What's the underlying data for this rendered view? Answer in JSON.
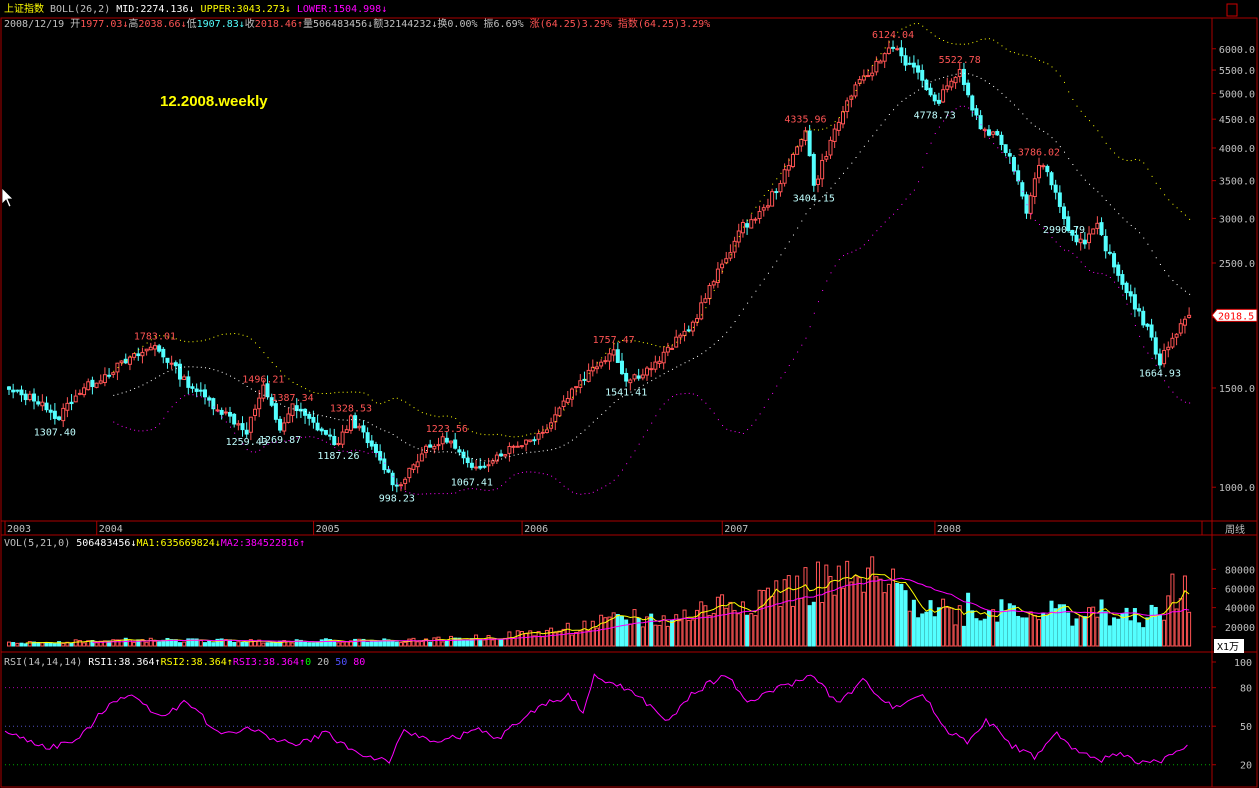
{
  "colors": {
    "bg": "#000000",
    "up": "#ff5454",
    "down": "#54ffff",
    "frame": "#aa0000",
    "axis_text": "#c0c0c0",
    "mid": "#ffffff",
    "upper": "#ffff00",
    "lower": "#ff00ff",
    "ma1": "#ffff00",
    "ma2": "#ff00ff",
    "rsi": "#ff00ff",
    "title_yellow": "#ffff00",
    "peak_label": "#ff5454",
    "trough_label": "#c0ffff"
  },
  "header": {
    "line1": [
      {
        "text": "上证指数",
        "color": "#ffff00"
      },
      {
        "text": " BOLL(26,2) ",
        "color": "#c0c0c0"
      },
      {
        "text": "MID:2274.136",
        "color": "#ffffff"
      },
      {
        "text": "↓ ",
        "color": "#ffffff"
      },
      {
        "text": "UPPER:3043.273",
        "color": "#ffff00"
      },
      {
        "text": "↓ ",
        "color": "#ffff00"
      },
      {
        "text": "LOWER:1504.998",
        "color": "#ff00ff"
      },
      {
        "text": "↓",
        "color": "#ff00ff"
      }
    ],
    "line2": [
      {
        "text": "2008/12/19 ",
        "color": "#c0c0c0"
      },
      {
        "text": "开",
        "color": "#c0c0c0"
      },
      {
        "text": "1977.03",
        "color": "#ff5454"
      },
      {
        "text": "↓",
        "color": "#ff5454"
      },
      {
        "text": "高",
        "color": "#c0c0c0"
      },
      {
        "text": "2038.66",
        "color": "#ff5454"
      },
      {
        "text": "↓",
        "color": "#ff5454"
      },
      {
        "text": "低",
        "color": "#c0c0c0"
      },
      {
        "text": "1907.83",
        "color": "#54ffff"
      },
      {
        "text": "↓",
        "color": "#54ffff"
      },
      {
        "text": "收",
        "color": "#c0c0c0"
      },
      {
        "text": "2018.46",
        "color": "#ff5454"
      },
      {
        "text": "↑",
        "color": "#ff5454"
      },
      {
        "text": "量506483456",
        "color": "#c0c0c0"
      },
      {
        "text": "↓",
        "color": "#c0c0c0"
      },
      {
        "text": "额32144232",
        "color": "#c0c0c0"
      },
      {
        "text": "↓",
        "color": "#c0c0c0"
      },
      {
        "text": "换0.00% 振6.69% ",
        "color": "#c0c0c0"
      },
      {
        "text": "涨(64.25)3.29%",
        "color": "#ff5454"
      },
      {
        "text": " 指数(64.25)3.29%",
        "color": "#ff5454"
      }
    ],
    "vol_line": [
      {
        "text": "VOL(5,21,0) ",
        "color": "#c0c0c0"
      },
      {
        "text": "506483456",
        "color": "#ffffff"
      },
      {
        "text": "↓",
        "color": "#ffffff"
      },
      {
        "text": "MA1:635669824",
        "color": "#ffff00"
      },
      {
        "text": "↓",
        "color": "#ffff00"
      },
      {
        "text": "MA2:384522816",
        "color": "#ff00ff"
      },
      {
        "text": "↑",
        "color": "#ff00ff"
      }
    ],
    "rsi_line": [
      {
        "text": "RSI(14,14,14) ",
        "color": "#c0c0c0"
      },
      {
        "text": "RSI1:38.364",
        "color": "#ffffff"
      },
      {
        "text": "↑",
        "color": "#ffffff"
      },
      {
        "text": "RSI2:38.364",
        "color": "#ffff00"
      },
      {
        "text": "↑",
        "color": "#ffff00"
      },
      {
        "text": "RSI3:38.364",
        "color": "#ff00ff"
      },
      {
        "text": "↑",
        "color": "#ff00ff"
      },
      {
        "text": "0",
        "color": "#00ff00"
      },
      {
        "text": " 20 ",
        "color": "#c0c0c0"
      },
      {
        "text": "50",
        "color": "#5050ff"
      },
      {
        "text": " 80",
        "color": "#ff00ff"
      }
    ]
  },
  "watermark": "12.2008.weekly",
  "price_badge": "2018.5",
  "period_label": "周线",
  "vol_unit": "X1万",
  "chart_data": {
    "type": "candlestick",
    "period": "weekly",
    "x_axis": {
      "labels": [
        "2003",
        "2004",
        "2005",
        "2006",
        "2007",
        "2008"
      ],
      "label_week": [
        0,
        22,
        74,
        124,
        172,
        223
      ]
    },
    "price_axis": {
      "ticks": [
        1000.0,
        1500.0,
        2000.0,
        2500.0,
        3000.0,
        3500.0,
        4000.0,
        4500.0,
        5000.0,
        5500.0,
        6000.0
      ],
      "range": [
        900,
        6270
      ]
    },
    "anchors": [
      [
        0,
        1480
      ],
      [
        8,
        1420
      ],
      [
        11,
        1307.4
      ],
      [
        16,
        1460
      ],
      [
        25,
        1620
      ],
      [
        35,
        1783.01
      ],
      [
        42,
        1550
      ],
      [
        48,
        1420
      ],
      [
        57,
        1259.43
      ],
      [
        61,
        1496.21
      ],
      [
        65,
        1269.87
      ],
      [
        68,
        1387.34
      ],
      [
        79,
        1187.26
      ],
      [
        82,
        1328.53
      ],
      [
        88,
        1140
      ],
      [
        93,
        998.23
      ],
      [
        99,
        1150
      ],
      [
        105,
        1223.56
      ],
      [
        111,
        1067.41
      ],
      [
        118,
        1150
      ],
      [
        128,
        1250
      ],
      [
        136,
        1520
      ],
      [
        145,
        1757.47
      ],
      [
        148,
        1541.41
      ],
      [
        155,
        1650
      ],
      [
        164,
        1950
      ],
      [
        170,
        2400
      ],
      [
        176,
        2900
      ],
      [
        181,
        3100
      ],
      [
        187,
        3700
      ],
      [
        190,
        4200
      ],
      [
        191,
        4335.96
      ],
      [
        193,
        3404.15
      ],
      [
        197,
        4100
      ],
      [
        202,
        5000
      ],
      [
        207,
        5500
      ],
      [
        212,
        6124.04
      ],
      [
        215,
        5700
      ],
      [
        219,
        5300
      ],
      [
        222,
        4778.73
      ],
      [
        225,
        5100
      ],
      [
        228,
        5522.78
      ],
      [
        230,
        4900
      ],
      [
        233,
        4350
      ],
      [
        238,
        4100
      ],
      [
        241,
        3700
      ],
      [
        244,
        3100
      ],
      [
        247,
        3786.02
      ],
      [
        250,
        3500
      ],
      [
        253,
        2990.79
      ],
      [
        255,
        2800
      ],
      [
        258,
        2700
      ],
      [
        261,
        2900
      ],
      [
        265,
        2450
      ],
      [
        270,
        2100
      ],
      [
        273,
        1900
      ],
      [
        276,
        1664.93
      ],
      [
        279,
        1850
      ],
      [
        283,
        2018.46
      ]
    ],
    "annotations": [
      {
        "text": "1307.40",
        "week": 11,
        "value": 1307.4,
        "kind": "low"
      },
      {
        "text": "1783.01",
        "week": 35,
        "value": 1783.01,
        "kind": "high"
      },
      {
        "text": "1259.43",
        "week": 57,
        "value": 1259.43,
        "kind": "low"
      },
      {
        "text": "1496.21",
        "week": 61,
        "value": 1496.21,
        "kind": "high"
      },
      {
        "text": "1269.87",
        "week": 65,
        "value": 1269.87,
        "kind": "low"
      },
      {
        "text": "1387.34",
        "week": 68,
        "value": 1387.34,
        "kind": "high"
      },
      {
        "text": "1187.26",
        "week": 79,
        "value": 1187.26,
        "kind": "low"
      },
      {
        "text": "1328.53",
        "week": 82,
        "value": 1328.53,
        "kind": "high"
      },
      {
        "text": "998.23",
        "week": 93,
        "value": 998.23,
        "kind": "low"
      },
      {
        "text": "1223.56",
        "week": 105,
        "value": 1223.56,
        "kind": "high"
      },
      {
        "text": "1067.41",
        "week": 111,
        "value": 1067.41,
        "kind": "low"
      },
      {
        "text": "1757.47",
        "week": 145,
        "value": 1757.47,
        "kind": "high"
      },
      {
        "text": "1541.41",
        "week": 148,
        "value": 1541.41,
        "kind": "low"
      },
      {
        "text": "4335.96",
        "week": 191,
        "value": 4335.96,
        "kind": "high"
      },
      {
        "text": "3404.15",
        "week": 193,
        "value": 3404.15,
        "kind": "low"
      },
      {
        "text": "6124.04",
        "week": 212,
        "value": 6124.04,
        "kind": "high"
      },
      {
        "text": "4778.73",
        "week": 222,
        "value": 4778.73,
        "kind": "low"
      },
      {
        "text": "5522.78",
        "week": 228,
        "value": 5522.78,
        "kind": "high"
      },
      {
        "text": "3786.02",
        "week": 247,
        "value": 3786.02,
        "kind": "high"
      },
      {
        "text": "2990.79",
        "week": 253,
        "value": 2990.79,
        "kind": "low"
      },
      {
        "text": "1664.93",
        "week": 276,
        "value": 1664.93,
        "kind": "low"
      }
    ],
    "volume": {
      "unit": "X1万",
      "ticks": [
        20000,
        40000,
        60000,
        80000
      ],
      "range": [
        0,
        97000
      ],
      "anchors": [
        [
          0,
          3000
        ],
        [
          30,
          6000
        ],
        [
          60,
          5000
        ],
        [
          100,
          6000
        ],
        [
          115,
          9000
        ],
        [
          130,
          15000
        ],
        [
          145,
          25000
        ],
        [
          160,
          28000
        ],
        [
          172,
          45000
        ],
        [
          185,
          55000
        ],
        [
          195,
          65000
        ],
        [
          205,
          62000
        ],
        [
          212,
          58000
        ],
        [
          220,
          45000
        ],
        [
          230,
          30000
        ],
        [
          240,
          42000
        ],
        [
          250,
          35000
        ],
        [
          260,
          32000
        ],
        [
          270,
          28000
        ],
        [
          277,
          35000
        ],
        [
          283,
          50000
        ]
      ],
      "spikes": [
        [
          150,
          38000
        ],
        [
          167,
          42000
        ],
        [
          184,
          68000
        ],
        [
          207,
          93000
        ],
        [
          230,
          55000
        ],
        [
          262,
          48000
        ],
        [
          279,
          75000
        ],
        [
          282,
          73000
        ]
      ]
    },
    "rsi": {
      "ticks": [
        20,
        50,
        80,
        100
      ],
      "range": [
        5,
        100
      ],
      "reference_lines": [
        20,
        50,
        80
      ],
      "anchors": [
        [
          0,
          45
        ],
        [
          12,
          33
        ],
        [
          20,
          40
        ],
        [
          28,
          68
        ],
        [
          33,
          75
        ],
        [
          42,
          58
        ],
        [
          49,
          70
        ],
        [
          57,
          44
        ],
        [
          65,
          48
        ],
        [
          78,
          35
        ],
        [
          86,
          45
        ],
        [
          95,
          28
        ],
        [
          103,
          23
        ],
        [
          107,
          45
        ],
        [
          117,
          38
        ],
        [
          127,
          47
        ],
        [
          132,
          40
        ],
        [
          143,
          65
        ],
        [
          151,
          74
        ],
        [
          155,
          62
        ],
        [
          158,
          88
        ],
        [
          166,
          80
        ],
        [
          172,
          68
        ],
        [
          178,
          53
        ],
        [
          184,
          75
        ],
        [
          193,
          90
        ],
        [
          200,
          68
        ],
        [
          204,
          76
        ],
        [
          210,
          82
        ],
        [
          217,
          90
        ],
        [
          223,
          67
        ],
        [
          230,
          85
        ],
        [
          238,
          65
        ],
        [
          246,
          75
        ],
        [
          252,
          48
        ],
        [
          258,
          38
        ],
        [
          263,
          55
        ],
        [
          270,
          35
        ],
        [
          276,
          26
        ],
        [
          282,
          44
        ],
        [
          285,
          35
        ],
        [
          293,
          22
        ],
        [
          297,
          30
        ],
        [
          305,
          22
        ],
        [
          311,
          24
        ],
        [
          317,
          34
        ]
      ]
    }
  }
}
